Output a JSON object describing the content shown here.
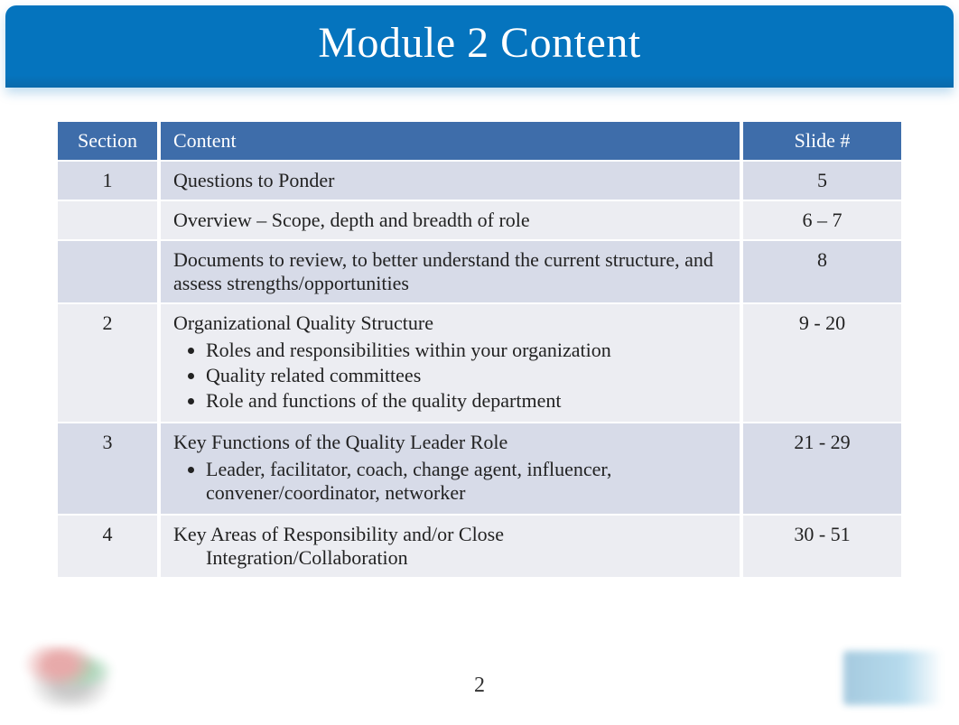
{
  "title": "Module 2 Content",
  "page_number": "2",
  "table": {
    "columns": [
      "Section",
      "Content",
      "Slide #"
    ],
    "rows": [
      {
        "section": "1",
        "content": "Questions to Ponder",
        "bullets": [],
        "slide": "5",
        "shade": "odd"
      },
      {
        "section": "",
        "content": "Overview – Scope, depth and breadth of role",
        "bullets": [],
        "slide": "6 – 7",
        "shade": "even"
      },
      {
        "section": "",
        "content": "Documents to review, to better understand the current structure, and assess strengths/opportunities",
        "bullets": [],
        "slide": "8",
        "shade": "odd"
      },
      {
        "section": "2",
        "content": "Organizational Quality Structure",
        "bullets": [
          "Roles and responsibilities within your organization",
          "Quality related committees",
          "Role and functions of the quality department"
        ],
        "slide": "9 - 20",
        "shade": "even"
      },
      {
        "section": "3",
        "content": "Key Functions of the Quality Leader Role",
        "bullets": [
          "Leader, facilitator, coach, change agent, influencer, convener/coordinator, networker"
        ],
        "slide": "21 - 29",
        "shade": "odd"
      },
      {
        "section": "4",
        "content": "Key Areas of Responsibility and/or Close",
        "indented_continuation": "Integration/Collaboration",
        "bullets": [],
        "slide": "30 - 51",
        "shade": "even"
      }
    ]
  },
  "colors": {
    "title_bg": "#0574be",
    "header_bg": "#3e6daa",
    "row_odd": "#d7dbe8",
    "row_even": "#ecedf2",
    "text": "#222222",
    "title_text": "#ffffff"
  }
}
